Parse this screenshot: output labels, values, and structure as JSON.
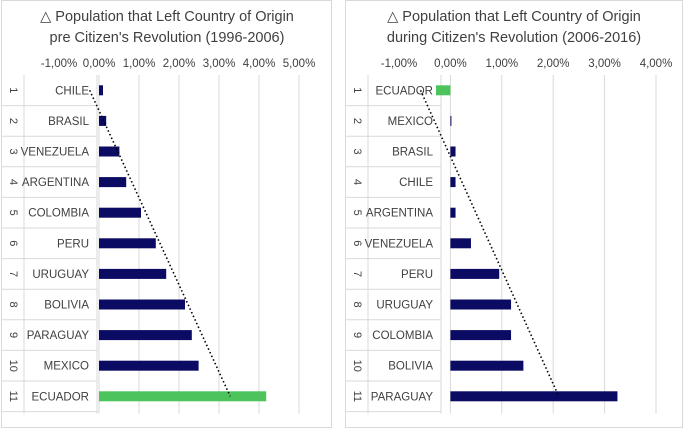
{
  "chart_data": [
    {
      "type": "bar",
      "orientation": "horizontal",
      "title_lines": [
        "△ Population that Left Country of Origin",
        "pre Citizen's Revolution (1996-2006)"
      ],
      "xlim": [
        -0.01,
        0.05
      ],
      "ticks": [
        -0.01,
        0.0,
        0.01,
        0.02,
        0.03,
        0.04,
        0.05
      ],
      "tick_labels": [
        "-1,00%",
        "0,00%",
        "1,00%",
        "2,00%",
        "3,00%",
        "4,00%",
        "5,00%"
      ],
      "ranks": [
        "1",
        "2",
        "3",
        "4",
        "5",
        "6",
        "7",
        "8",
        "9",
        "10",
        "11"
      ],
      "categories": [
        "CHILE",
        "BRASIL",
        "VENEZUELA",
        "ARGENTINA",
        "COLOMBIA",
        "PERU",
        "URUGUAY",
        "BOLIVIA",
        "PARAGUAY",
        "MEXICO",
        "ECUADOR"
      ],
      "values": [
        0.001,
        0.0018,
        0.0051,
        0.0068,
        0.0105,
        0.0142,
        0.0168,
        0.0215,
        0.0232,
        0.0249,
        0.0418
      ],
      "highlight": "ECUADOR",
      "trendline": "linear",
      "grid": true,
      "colors": {
        "bar": "#0b0b63",
        "highlight": "#4cc35b"
      }
    },
    {
      "type": "bar",
      "orientation": "horizontal",
      "title_lines": [
        "△ Population that Left Country of Origin",
        "during Citizen's Revolution (2006-2016)"
      ],
      "xlim": [
        -0.01,
        0.04
      ],
      "ticks": [
        -0.01,
        0.0,
        0.01,
        0.02,
        0.03,
        0.04
      ],
      "tick_labels": [
        "-1,00%",
        "0,00%",
        "1,00%",
        "2,00%",
        "3,00%",
        "4,00%"
      ],
      "ranks": [
        "1",
        "2",
        "3",
        "4",
        "5",
        "6",
        "7",
        "8",
        "9",
        "10",
        "11"
      ],
      "categories": [
        "ECUADOR",
        "MEXICO",
        "BRASIL",
        "CHILE",
        "ARGENTINA",
        "VENEZUELA",
        "PERU",
        "URUGUAY",
        "COLOMBIA",
        "BOLIVIA",
        "PARAGUAY"
      ],
      "values": [
        -0.0028,
        0.0,
        0.001,
        0.001,
        0.001,
        0.004,
        0.0095,
        0.0118,
        0.0118,
        0.0142,
        0.0325
      ],
      "highlight": "ECUADOR",
      "trendline": "linear",
      "grid": true,
      "colors": {
        "bar": "#0b0b63",
        "highlight": "#4cc35b"
      }
    }
  ]
}
